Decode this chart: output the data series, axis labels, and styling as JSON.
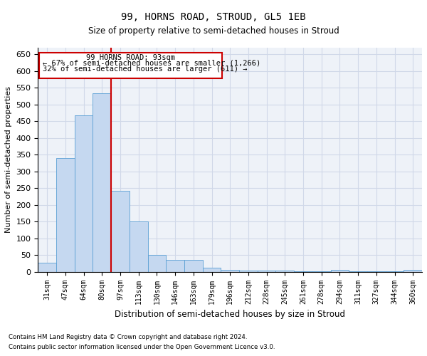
{
  "title": "99, HORNS ROAD, STROUD, GL5 1EB",
  "subtitle": "Size of property relative to semi-detached houses in Stroud",
  "xlabel": "Distribution of semi-detached houses by size in Stroud",
  "ylabel": "Number of semi-detached properties",
  "categories": [
    "31sqm",
    "47sqm",
    "64sqm",
    "80sqm",
    "97sqm",
    "113sqm",
    "130sqm",
    "146sqm",
    "163sqm",
    "179sqm",
    "196sqm",
    "212sqm",
    "228sqm",
    "245sqm",
    "261sqm",
    "278sqm",
    "294sqm",
    "311sqm",
    "327sqm",
    "344sqm",
    "360sqm"
  ],
  "values": [
    28,
    340,
    467,
    533,
    243,
    150,
    50,
    36,
    36,
    12,
    6,
    3,
    3,
    3,
    1,
    1,
    5,
    1,
    1,
    1,
    5
  ],
  "bar_color": "#c5d8f0",
  "bar_edge_color": "#5a9fd4",
  "vline_color": "#cc0000",
  "annotation_smaller_pct": "67%",
  "annotation_smaller_n": "1,266",
  "annotation_larger_pct": "32%",
  "annotation_larger_n": "611",
  "annotation_box_color": "#cc0000",
  "property_label": "99 HORNS ROAD: 93sqm",
  "ylim": [
    0,
    670
  ],
  "yticks": [
    0,
    50,
    100,
    150,
    200,
    250,
    300,
    350,
    400,
    450,
    500,
    550,
    600,
    650
  ],
  "grid_color": "#d0d8e8",
  "background_color": "#eef2f8",
  "footer_line1": "Contains HM Land Registry data © Crown copyright and database right 2024.",
  "footer_line2": "Contains public sector information licensed under the Open Government Licence v3.0."
}
